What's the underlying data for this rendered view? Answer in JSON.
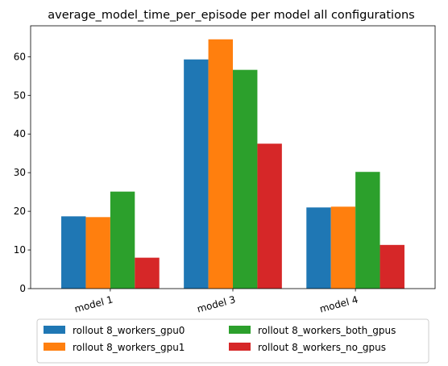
{
  "chart_data": {
    "type": "bar",
    "title": "average_model_time_per_episode per model all configurations",
    "xlabel": "",
    "ylabel": "",
    "categories": [
      "model 1",
      "model 3",
      "model 4"
    ],
    "ylim": [
      0,
      68
    ],
    "yticks": [
      0,
      10,
      20,
      30,
      40,
      50,
      60
    ],
    "grid": false,
    "legend_position": "bottom",
    "legend_columns": 2,
    "series": [
      {
        "name": "rollout 8_workers_gpu0",
        "color": "#1f77b4",
        "values": [
          18.7,
          59.3,
          21.0
        ]
      },
      {
        "name": "rollout 8_workers_gpu1",
        "color": "#ff7f0e",
        "values": [
          18.5,
          64.5,
          21.2
        ]
      },
      {
        "name": "rollout 8_workers_both_gpus",
        "color": "#2ca02c",
        "values": [
          25.1,
          56.6,
          30.2
        ]
      },
      {
        "name": "rollout 8_workers_no_gpus",
        "color": "#d62728",
        "values": [
          8.0,
          37.5,
          11.3
        ]
      }
    ]
  }
}
